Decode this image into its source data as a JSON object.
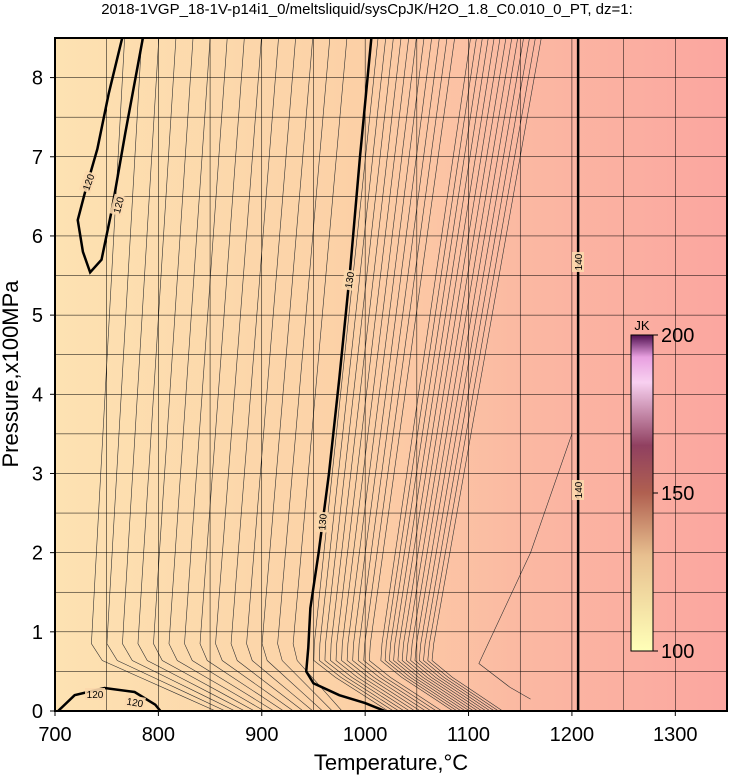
{
  "chart_data": {
    "type": "contour",
    "title": "2018-1VGP_18-1V-p14i1_0/meltsliquid/sysCpJK/H2O_1.8_C0.010_0_PT, dz=1:",
    "xlabel": "Temperature,°C",
    "ylabel": "Pressure,x100MPa",
    "xlim": [
      700,
      1350
    ],
    "ylim": [
      0,
      8.5
    ],
    "xticks": [
      700,
      800,
      900,
      1000,
      1100,
      1200,
      1300
    ],
    "yticks": [
      0,
      1,
      2,
      3,
      4,
      5,
      6,
      7,
      8
    ],
    "grid": true,
    "colorbar": {
      "label": "JK",
      "clim": [
        100,
        200
      ],
      "ticks": [
        100,
        150,
        200
      ]
    },
    "contours": [
      {
        "level": 120,
        "x": [
          765,
          752,
          741,
          730,
          722,
          727,
          734,
          745,
          755,
          768,
          785
        ],
        "y": [
          8.5,
          7.8,
          7.1,
          6.6,
          6.2,
          5.8,
          5.54,
          5.7,
          6.33,
          7.3,
          8.5
        ]
      },
      {
        "level": 120,
        "x": [
          703,
          719,
          748,
          777,
          797,
          802
        ],
        "y": [
          0,
          0.2,
          0.29,
          0.24,
          0.08,
          0
        ]
      },
      {
        "level": 130,
        "x": [
          1006,
          995,
          985,
          975,
          965,
          955,
          947,
          945,
          943,
          950,
          975,
          1000,
          1019
        ],
        "y": [
          8.5,
          7,
          5.5,
          4.2,
          3,
          2,
          1.3,
          0.8,
          0.5,
          0.35,
          0.2,
          0.1,
          0
        ]
      },
      {
        "level": 140,
        "x": [
          1206,
          1206
        ],
        "y": [
          0,
          8.5
        ]
      }
    ]
  }
}
